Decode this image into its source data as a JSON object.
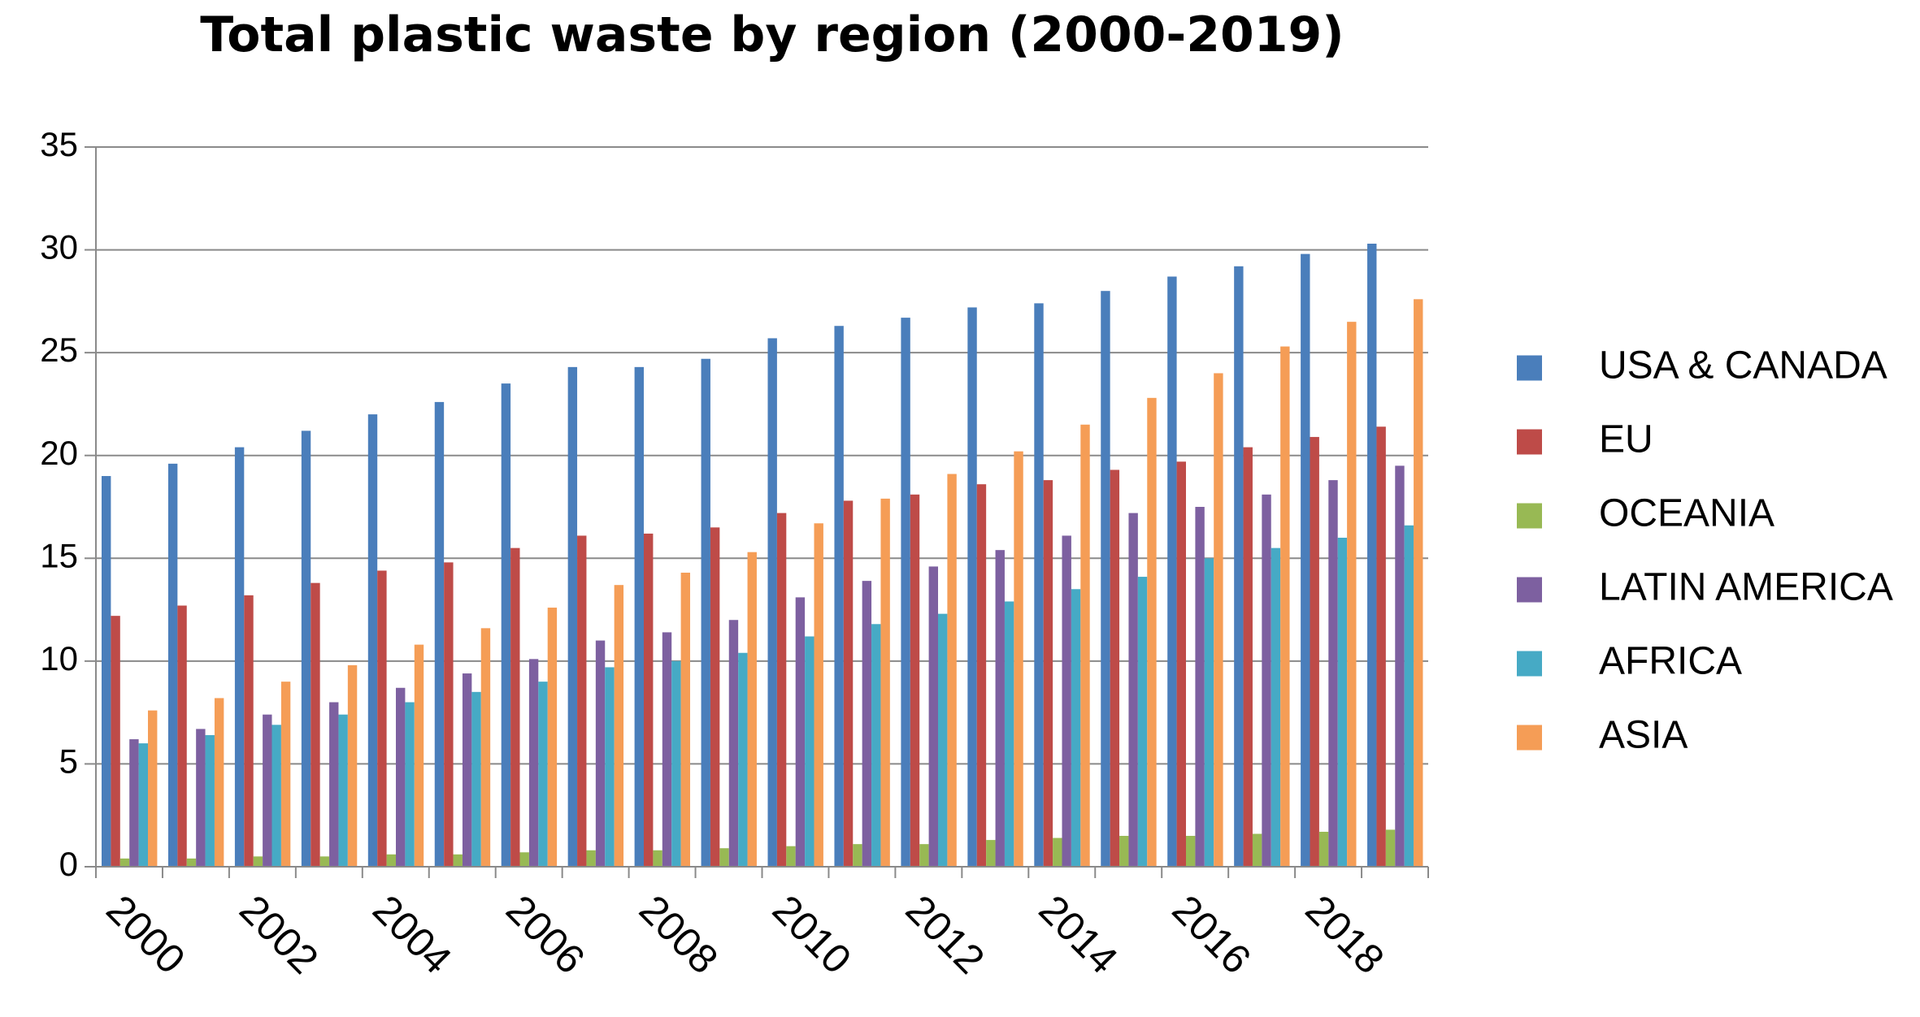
{
  "chart_data": {
    "type": "bar",
    "title": "Total plastic waste by region (2000-2019)",
    "xlabel": "",
    "ylabel": "",
    "ylim": [
      0,
      35
    ],
    "yticks": [
      0,
      5,
      10,
      15,
      20,
      25,
      30,
      35
    ],
    "categories": [
      "2000",
      "2001",
      "2002",
      "2003",
      "2004",
      "2005",
      "2006",
      "2007",
      "2008",
      "2009",
      "2010",
      "2011",
      "2012",
      "2013",
      "2014",
      "2015",
      "2016",
      "2017",
      "2018",
      "2019"
    ],
    "x_tick_labels": [
      "2000",
      "2002",
      "2004",
      "2006",
      "2008",
      "2010",
      "2012",
      "2014",
      "2016",
      "2018"
    ],
    "grid": true,
    "legend_position": "right",
    "series": [
      {
        "name": "USA & CANADA",
        "color": "#4a7ebb",
        "values": [
          19.0,
          19.6,
          20.4,
          21.2,
          22.0,
          22.6,
          23.5,
          24.3,
          24.3,
          24.7,
          25.7,
          26.3,
          26.7,
          27.2,
          27.4,
          28.0,
          28.7,
          29.2,
          29.8,
          30.3
        ]
      },
      {
        "name": "EU",
        "color": "#be4b48",
        "values": [
          12.2,
          12.7,
          13.2,
          13.8,
          14.4,
          14.8,
          15.5,
          16.1,
          16.2,
          16.5,
          17.2,
          17.8,
          18.1,
          18.6,
          18.8,
          19.3,
          19.7,
          20.4,
          20.9,
          21.4
        ]
      },
      {
        "name": "OCEANIA",
        "color": "#98b954",
        "values": [
          0.4,
          0.4,
          0.5,
          0.5,
          0.6,
          0.6,
          0.7,
          0.8,
          0.8,
          0.9,
          1.0,
          1.1,
          1.1,
          1.3,
          1.4,
          1.5,
          1.5,
          1.6,
          1.7,
          1.8
        ]
      },
      {
        "name": "LATIN AMERICA",
        "color": "#7d60a0",
        "values": [
          6.2,
          6.7,
          7.4,
          8.0,
          8.7,
          9.4,
          10.1,
          11.0,
          11.4,
          12.0,
          13.1,
          13.9,
          14.6,
          15.4,
          16.1,
          17.2,
          17.5,
          18.1,
          18.8,
          19.5
        ]
      },
      {
        "name": "AFRICA",
        "color": "#46aac5",
        "values": [
          6.0,
          6.4,
          6.9,
          7.4,
          8.0,
          8.5,
          9.0,
          9.7,
          10.0,
          10.4,
          11.2,
          11.8,
          12.3,
          12.9,
          13.5,
          14.1,
          15.0,
          15.5,
          16.0,
          16.6
        ]
      },
      {
        "name": "ASIA",
        "color": "#f59d56",
        "values": [
          7.6,
          8.2,
          9.0,
          9.8,
          10.8,
          11.6,
          12.6,
          13.7,
          14.3,
          15.3,
          16.7,
          17.9,
          19.1,
          20.2,
          21.5,
          22.8,
          24.0,
          25.3,
          26.5,
          27.6
        ]
      }
    ]
  }
}
